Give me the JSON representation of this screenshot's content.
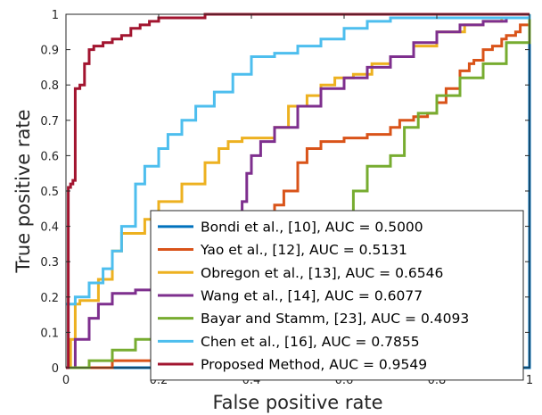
{
  "chart_data": {
    "type": "line",
    "title": "",
    "xlabel": "False positive rate",
    "ylabel": "True positive rate",
    "xlim": [
      0,
      1
    ],
    "ylim": [
      0,
      1
    ],
    "xticks": [
      0,
      0.2,
      0.4,
      0.6,
      0.8,
      1
    ],
    "xtick_labels": [
      "0",
      "0.2",
      "0.4",
      "0.6",
      "0.8",
      "1"
    ],
    "yticks": [
      0,
      0.1,
      0.2,
      0.3,
      0.4,
      0.5,
      0.6,
      0.7,
      0.8,
      0.9,
      1
    ],
    "ytick_labels": [
      "0",
      "0.1",
      "0.2",
      "0.3",
      "0.4",
      "0.5",
      "0.6",
      "0.7",
      "0.8",
      "0.9",
      "1"
    ],
    "grid": false,
    "legend_position": "bottom-right",
    "series": [
      {
        "name": "Bondi et al., [10], AUC = 0.5000",
        "color": "#0072BD",
        "x": [
          0,
          1
        ],
        "y": [
          0,
          1
        ]
      },
      {
        "name": "Yao et al., [12], AUC = 0.5131",
        "color": "#D95319",
        "x": [
          0,
          0.1,
          0.25,
          0.3,
          0.35,
          0.38,
          0.39,
          0.4,
          0.42,
          0.45,
          0.47,
          0.5,
          0.52,
          0.55,
          0.6,
          0.65,
          0.7,
          0.72,
          0.75,
          0.78,
          0.8,
          0.82,
          0.85,
          0.87,
          0.88,
          0.9,
          0.92,
          0.94,
          0.95,
          0.96,
          0.97,
          0.98,
          1
        ],
        "y": [
          0,
          0.02,
          0.08,
          0.12,
          0.18,
          0.3,
          0.4,
          0.42,
          0.44,
          0.46,
          0.5,
          0.58,
          0.62,
          0.64,
          0.65,
          0.66,
          0.68,
          0.7,
          0.71,
          0.72,
          0.75,
          0.79,
          0.84,
          0.86,
          0.87,
          0.9,
          0.91,
          0.93,
          0.94,
          0.94,
          0.95,
          0.97,
          1
        ]
      },
      {
        "name": "Obregon et al., [13], AUC = 0.6546",
        "color": "#EDB120",
        "x": [
          0,
          0.01,
          0.02,
          0.03,
          0.07,
          0.1,
          0.12,
          0.17,
          0.2,
          0.25,
          0.3,
          0.33,
          0.35,
          0.38,
          0.45,
          0.48,
          0.52,
          0.55,
          0.58,
          0.62,
          0.66,
          0.7,
          0.75,
          0.8,
          0.86,
          0.9,
          0.94,
          1
        ],
        "y": [
          0,
          0.08,
          0.18,
          0.19,
          0.25,
          0.33,
          0.38,
          0.42,
          0.47,
          0.52,
          0.58,
          0.62,
          0.64,
          0.65,
          0.68,
          0.74,
          0.77,
          0.8,
          0.82,
          0.83,
          0.86,
          0.88,
          0.91,
          0.95,
          0.97,
          0.98,
          0.99,
          1
        ]
      },
      {
        "name": "Wang et al., [14], AUC = 0.6077",
        "color": "#7E2F8E",
        "x": [
          0,
          0.02,
          0.05,
          0.07,
          0.1,
          0.15,
          0.2,
          0.25,
          0.3,
          0.35,
          0.38,
          0.39,
          0.4,
          0.42,
          0.45,
          0.5,
          0.55,
          0.6,
          0.65,
          0.7,
          0.75,
          0.8,
          0.85,
          0.9,
          0.95,
          1
        ],
        "y": [
          0,
          0.08,
          0.14,
          0.18,
          0.21,
          0.22,
          0.23,
          0.25,
          0.28,
          0.35,
          0.47,
          0.55,
          0.6,
          0.64,
          0.68,
          0.74,
          0.79,
          0.82,
          0.85,
          0.88,
          0.92,
          0.95,
          0.97,
          0.98,
          0.99,
          1
        ]
      },
      {
        "name": "Bayar and Stamm, [23], AUC = 0.4093",
        "color": "#77AC30",
        "x": [
          0,
          0.05,
          0.1,
          0.15,
          0.2,
          0.25,
          0.3,
          0.35,
          0.4,
          0.45,
          0.5,
          0.55,
          0.58,
          0.62,
          0.65,
          0.7,
          0.73,
          0.76,
          0.8,
          0.85,
          0.9,
          0.95,
          1
        ],
        "y": [
          0,
          0.02,
          0.05,
          0.08,
          0.1,
          0.12,
          0.14,
          0.15,
          0.16,
          0.17,
          0.18,
          0.2,
          0.28,
          0.5,
          0.57,
          0.6,
          0.68,
          0.72,
          0.77,
          0.82,
          0.86,
          0.92,
          1
        ]
      },
      {
        "name": "Chen et al., [16], AUC = 0.7855",
        "color": "#4DBEEE",
        "x": [
          0,
          0.02,
          0.05,
          0.08,
          0.1,
          0.12,
          0.15,
          0.17,
          0.2,
          0.22,
          0.25,
          0.28,
          0.32,
          0.36,
          0.4,
          0.45,
          0.5,
          0.55,
          0.6,
          0.65,
          0.7,
          1
        ],
        "y": [
          0.18,
          0.2,
          0.24,
          0.28,
          0.33,
          0.4,
          0.52,
          0.57,
          0.62,
          0.66,
          0.7,
          0.74,
          0.78,
          0.83,
          0.88,
          0.89,
          0.91,
          0.93,
          0.96,
          0.98,
          0.99,
          1
        ]
      },
      {
        "name": "Proposed Method, AUC = 0.9549",
        "color": "#A2142F",
        "x": [
          0,
          0.005,
          0.01,
          0.015,
          0.02,
          0.03,
          0.04,
          0.05,
          0.06,
          0.08,
          0.1,
          0.12,
          0.14,
          0.16,
          0.18,
          0.2,
          0.25,
          0.3,
          0.4,
          0.6,
          1
        ],
        "y": [
          0,
          0.51,
          0.52,
          0.53,
          0.79,
          0.8,
          0.86,
          0.9,
          0.91,
          0.92,
          0.93,
          0.94,
          0.96,
          0.97,
          0.98,
          0.99,
          0.99,
          1,
          1,
          1,
          1
        ]
      }
    ]
  }
}
